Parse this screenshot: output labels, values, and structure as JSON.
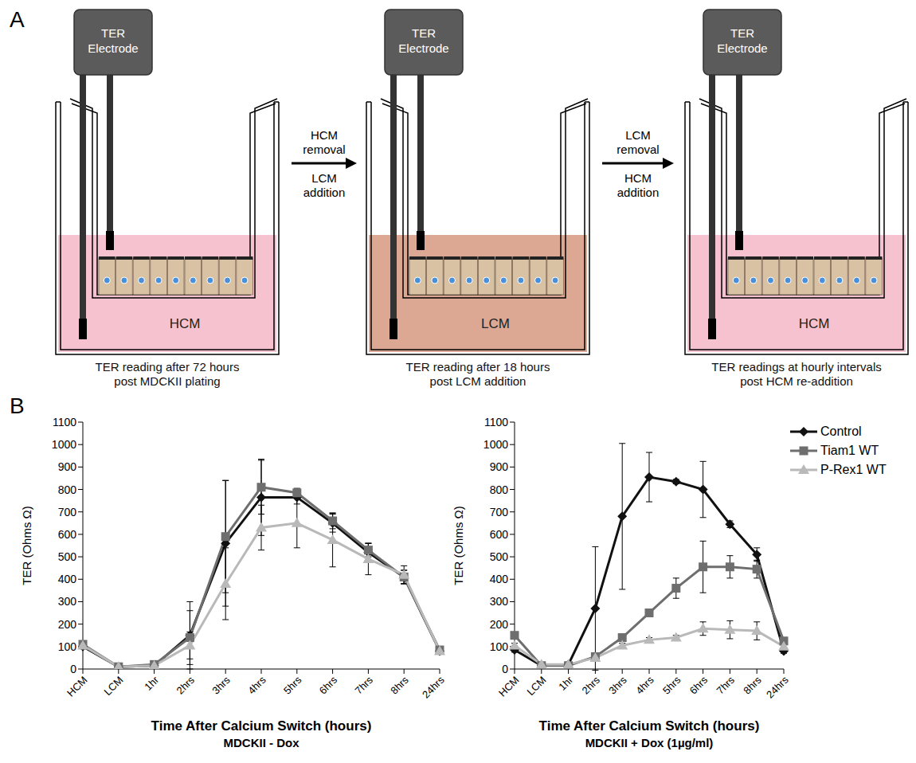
{
  "panel_a": {
    "letter": "A",
    "electrode_label": [
      "TER",
      "Electrode"
    ],
    "steps": [
      {
        "medium": "HCM",
        "color": "#f6c2d0",
        "caption": [
          "TER reading after 72 hours",
          "post MDCKII plating"
        ]
      },
      {
        "medium": "LCM",
        "color": "#dca793",
        "caption": [
          "TER reading after 18 hours",
          "post LCM addition"
        ]
      },
      {
        "medium": "HCM",
        "color": "#f6c2d0",
        "caption": [
          "TER readings at hourly intervals",
          "post HCM re-addition"
        ]
      }
    ],
    "arrows": [
      {
        "above": [
          "HCM",
          "removal"
        ],
        "below": [
          "LCM",
          "addition"
        ]
      },
      {
        "above": [
          "LCM",
          "removal"
        ],
        "below": [
          "HCM",
          "addition"
        ]
      }
    ]
  },
  "panel_b": {
    "letter": "B"
  },
  "chart_data": [
    {
      "type": "line",
      "x_label": "Time After Calcium Switch (hours)",
      "subtitle": "MDCKII - Dox",
      "y_label": "TER (Ohms Ω)",
      "categories": [
        "HCM",
        "LCM",
        "1hr",
        "2hrs",
        "3hrs",
        "4hrs",
        "5hrs",
        "6hrs",
        "7hrs",
        "8hrs",
        "24hrs"
      ],
      "ylim": [
        0,
        1100
      ],
      "yticks": [
        0,
        100,
        200,
        300,
        400,
        500,
        600,
        700,
        800,
        900,
        1000,
        1100
      ],
      "series": [
        {
          "name": "Control",
          "color": "#111111",
          "marker": "diamond",
          "values": [
            100,
            10,
            15,
            150,
            560,
            765,
            765,
            650,
            520,
            410,
            80
          ],
          "errors": [
            10,
            5,
            5,
            150,
            280,
            170,
            30,
            40,
            40,
            30,
            10
          ]
        },
        {
          "name": "Tiam1 WT",
          "color": "#6e6e6e",
          "marker": "square",
          "values": [
            110,
            10,
            20,
            140,
            590,
            810,
            785,
            660,
            530,
            410,
            85
          ],
          "errors": [
            15,
            5,
            5,
            120,
            250,
            120,
            20,
            35,
            30,
            30,
            10
          ]
        },
        {
          "name": "P-Rex1 WT",
          "color": "#b9b9b9",
          "marker": "triangle",
          "values": [
            105,
            10,
            15,
            105,
            380,
            630,
            650,
            575,
            490,
            420,
            80
          ],
          "errors": [
            10,
            5,
            5,
            60,
            160,
            100,
            110,
            120,
            70,
            40,
            10
          ]
        }
      ]
    },
    {
      "type": "line",
      "x_label": "Time After Calcium Switch (hours)",
      "subtitle": "MDCKII + Dox (1µg/ml)",
      "y_label": "TER (Ohms Ω)",
      "legend": "right",
      "categories": [
        "HCM",
        "LCM",
        "1hr",
        "2hrs",
        "3hrs",
        "4hrs",
        "5hrs",
        "6hrs",
        "7hrs",
        "8hrs",
        "24hrs"
      ],
      "ylim": [
        0,
        1100
      ],
      "yticks": [
        0,
        100,
        200,
        300,
        400,
        500,
        600,
        700,
        800,
        900,
        1000,
        1100
      ],
      "series": [
        {
          "name": "Control",
          "color": "#111111",
          "marker": "diamond",
          "values": [
            85,
            15,
            20,
            270,
            680,
            855,
            835,
            800,
            645,
            510,
            80
          ],
          "errors": [
            10,
            5,
            5,
            275,
            325,
            110,
            10,
            125,
            15,
            30,
            10
          ]
        },
        {
          "name": "Tiam1 WT",
          "color": "#6e6e6e",
          "marker": "square",
          "values": [
            150,
            15,
            15,
            55,
            140,
            250,
            360,
            455,
            455,
            445,
            125
          ],
          "errors": [
            15,
            5,
            5,
            10,
            15,
            15,
            45,
            115,
            50,
            40,
            15
          ]
        },
        {
          "name": "P-Rex1 WT",
          "color": "#b9b9b9",
          "marker": "triangle",
          "values": [
            105,
            20,
            20,
            50,
            105,
            130,
            140,
            180,
            175,
            170,
            100
          ],
          "errors": [
            10,
            5,
            5,
            10,
            10,
            10,
            10,
            30,
            40,
            40,
            10
          ]
        }
      ]
    }
  ]
}
